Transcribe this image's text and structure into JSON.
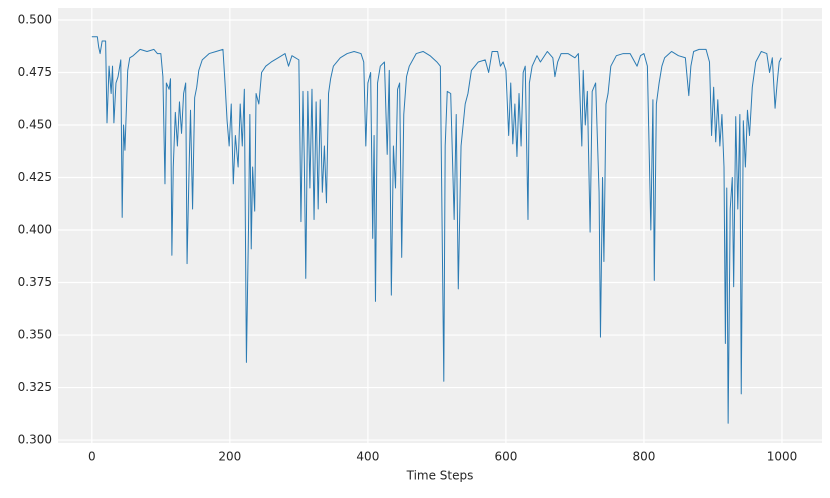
{
  "chart_data": {
    "type": "line",
    "xlabel": "Time Steps",
    "x": [
      0,
      5,
      8,
      10,
      12,
      15,
      20,
      22,
      25,
      28,
      30,
      32,
      35,
      38,
      42,
      44,
      46,
      48,
      52,
      55,
      60,
      70,
      80,
      90,
      95,
      100,
      103,
      106,
      108,
      112,
      114,
      116,
      118,
      121,
      124,
      127,
      130,
      133,
      136,
      138,
      141,
      143,
      146,
      149,
      152,
      155,
      160,
      170,
      180,
      190,
      193,
      196,
      199,
      202,
      205,
      208,
      212,
      215,
      218,
      221,
      224,
      227,
      229,
      231,
      233,
      236,
      238,
      242,
      246,
      252,
      260,
      270,
      280,
      285,
      290,
      300,
      303,
      306,
      308,
      310,
      313,
      316,
      319,
      322,
      325,
      328,
      331,
      334,
      337,
      340,
      343,
      346,
      350,
      360,
      370,
      380,
      390,
      394,
      397,
      400,
      404,
      407,
      409,
      411,
      414,
      418,
      424,
      428,
      431,
      434,
      437,
      440,
      443,
      446,
      449,
      452,
      456,
      460,
      470,
      480,
      490,
      500,
      505,
      510,
      512,
      515,
      520,
      525,
      528,
      531,
      535,
      538,
      541,
      545,
      550,
      560,
      570,
      575,
      580,
      588,
      592,
      596,
      600,
      604,
      607,
      610,
      613,
      616,
      619,
      622,
      625,
      628,
      632,
      634,
      638,
      645,
      650,
      660,
      668,
      671,
      675,
      680,
      690,
      700,
      705,
      710,
      712,
      715,
      718,
      722,
      725,
      730,
      735,
      737,
      740,
      742,
      745,
      748,
      752,
      760,
      770,
      780,
      790,
      795,
      800,
      805,
      810,
      813,
      815,
      818,
      822,
      826,
      830,
      840,
      850,
      860,
      865,
      868,
      872,
      880,
      890,
      895,
      898,
      901,
      904,
      907,
      910,
      913,
      916,
      918,
      920,
      922,
      925,
      928,
      930,
      933,
      936,
      939,
      941,
      944,
      947,
      950,
      953,
      957,
      962,
      970,
      978,
      982,
      986,
      990,
      993,
      996,
      999
    ],
    "series": [
      {
        "color": "#2b7bb3",
        "values": [
          0.492,
          0.492,
          0.492,
          0.487,
          0.484,
          0.49,
          0.49,
          0.451,
          0.478,
          0.465,
          0.478,
          0.451,
          0.47,
          0.473,
          0.481,
          0.406,
          0.45,
          0.438,
          0.476,
          0.482,
          0.483,
          0.486,
          0.485,
          0.486,
          0.484,
          0.484,
          0.473,
          0.422,
          0.47,
          0.467,
          0.472,
          0.388,
          0.43,
          0.456,
          0.44,
          0.461,
          0.446,
          0.465,
          0.47,
          0.384,
          0.43,
          0.457,
          0.41,
          0.463,
          0.468,
          0.476,
          0.481,
          0.484,
          0.485,
          0.486,
          0.47,
          0.452,
          0.44,
          0.46,
          0.422,
          0.445,
          0.43,
          0.46,
          0.44,
          0.467,
          0.337,
          0.4,
          0.455,
          0.391,
          0.43,
          0.409,
          0.465,
          0.46,
          0.475,
          0.478,
          0.48,
          0.482,
          0.484,
          0.478,
          0.483,
          0.481,
          0.404,
          0.466,
          0.431,
          0.377,
          0.466,
          0.42,
          0.467,
          0.405,
          0.461,
          0.41,
          0.462,
          0.418,
          0.44,
          0.413,
          0.465,
          0.472,
          0.478,
          0.482,
          0.484,
          0.485,
          0.484,
          0.48,
          0.44,
          0.47,
          0.475,
          0.396,
          0.445,
          0.366,
          0.47,
          0.478,
          0.48,
          0.436,
          0.476,
          0.369,
          0.44,
          0.42,
          0.467,
          0.47,
          0.387,
          0.455,
          0.473,
          0.478,
          0.484,
          0.485,
          0.483,
          0.48,
          0.478,
          0.328,
          0.44,
          0.466,
          0.465,
          0.405,
          0.455,
          0.372,
          0.44,
          0.45,
          0.46,
          0.465,
          0.476,
          0.48,
          0.481,
          0.475,
          0.485,
          0.485,
          0.478,
          0.48,
          0.476,
          0.445,
          0.47,
          0.441,
          0.46,
          0.435,
          0.465,
          0.44,
          0.475,
          0.478,
          0.405,
          0.47,
          0.478,
          0.483,
          0.48,
          0.485,
          0.482,
          0.473,
          0.48,
          0.484,
          0.484,
          0.482,
          0.484,
          0.44,
          0.476,
          0.45,
          0.466,
          0.399,
          0.466,
          0.47,
          0.418,
          0.349,
          0.425,
          0.385,
          0.46,
          0.465,
          0.478,
          0.483,
          0.484,
          0.484,
          0.478,
          0.483,
          0.484,
          0.478,
          0.4,
          0.462,
          0.376,
          0.46,
          0.47,
          0.478,
          0.482,
          0.485,
          0.483,
          0.482,
          0.464,
          0.478,
          0.485,
          0.486,
          0.486,
          0.48,
          0.445,
          0.468,
          0.442,
          0.462,
          0.44,
          0.455,
          0.43,
          0.346,
          0.42,
          0.308,
          0.41,
          0.425,
          0.373,
          0.454,
          0.41,
          0.455,
          0.322,
          0.452,
          0.43,
          0.457,
          0.445,
          0.468,
          0.48,
          0.485,
          0.484,
          0.475,
          0.482,
          0.458,
          0.47,
          0.48,
          0.482
        ]
      }
    ],
    "xlim": [
      -49,
      1058
    ],
    "ylim": [
      0.2986,
      0.5057
    ],
    "xticks": [
      0,
      200,
      400,
      600,
      800,
      1000
    ],
    "yticks": [
      {
        "value": 0.3,
        "label": "0.300"
      },
      {
        "value": 0.325,
        "label": "0.325"
      },
      {
        "value": 0.35,
        "label": "0.350"
      },
      {
        "value": 0.375,
        "label": "0.375"
      },
      {
        "value": 0.4,
        "label": "0.400"
      },
      {
        "value": 0.425,
        "label": "0.425"
      },
      {
        "value": 0.45,
        "label": "0.450"
      },
      {
        "value": 0.475,
        "label": "0.475"
      },
      {
        "value": 0.5,
        "label": "0.500"
      }
    ],
    "grid": true,
    "background": "#efefef"
  }
}
